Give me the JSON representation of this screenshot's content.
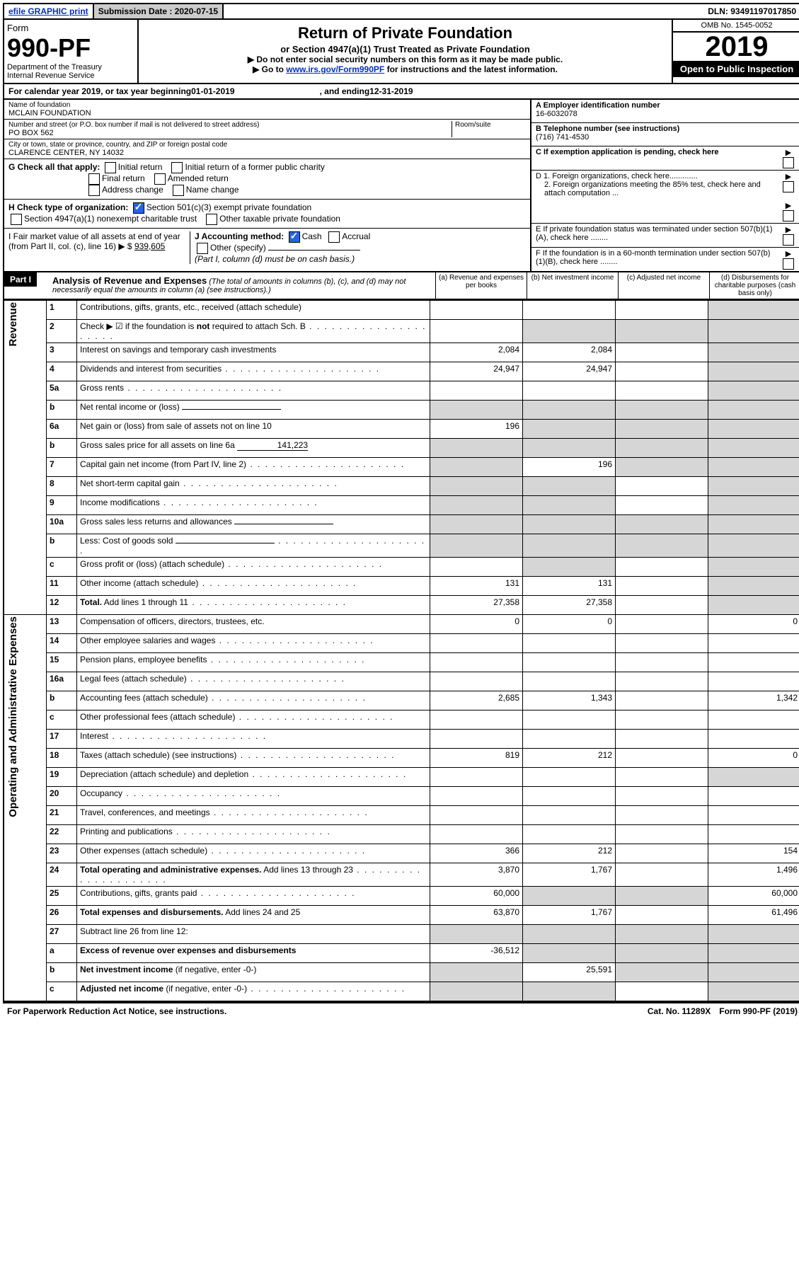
{
  "topbar": {
    "efile": "efile GRAPHIC print",
    "submission_label": "Submission Date : 2020-07-15",
    "dln": "DLN: 93491197017850"
  },
  "header": {
    "form_word": "Form",
    "form_number": "990-PF",
    "dept1": "Department of the Treasury",
    "dept2": "Internal Revenue Service",
    "title": "Return of Private Foundation",
    "subtitle": "or Section 4947(a)(1) Trust Treated as Private Foundation",
    "note1": "▶ Do not enter social security numbers on this form as it may be made public.",
    "note2_pre": "▶ Go to ",
    "note2_link": "www.irs.gov/Form990PF",
    "note2_post": " for instructions and the latest information.",
    "omb": "OMB No. 1545-0052",
    "year": "2019",
    "open_public": "Open to Public Inspection"
  },
  "calendar": {
    "prefix": "For calendar year 2019, or tax year beginning ",
    "begin": "01-01-2019",
    "mid": " , and ending ",
    "end": "12-31-2019"
  },
  "foundation": {
    "name_label": "Name of foundation",
    "name": "MCLAIN FOUNDATION",
    "addr_label": "Number and street (or P.O. box number if mail is not delivered to street address)",
    "room_label": "Room/suite",
    "addr": "PO BOX 562",
    "city_label": "City or town, state or province, country, and ZIP or foreign postal code",
    "city": "CLARENCE CENTER, NY  14032",
    "ein_label": "A Employer identification number",
    "ein": "16-6032078",
    "phone_label": "B Telephone number (see instructions)",
    "phone": "(716) 741-4530",
    "c_label": "C If exemption application is pending, check here",
    "d1": "D 1. Foreign organizations, check here.............",
    "d2": "2. Foreign organizations meeting the 85% test, check here and attach computation ...",
    "e_label": "E  If private foundation status was terminated under section 507(b)(1)(A), check here ........",
    "f_label": "F  If the foundation is in a 60-month termination under section 507(b)(1)(B), check here ........"
  },
  "checks": {
    "g_label": "G Check all that apply:",
    "initial": "Initial return",
    "initial_former": "Initial return of a former public charity",
    "final": "Final return",
    "amended": "Amended return",
    "address": "Address change",
    "name_change": "Name change",
    "h_label": "H Check type of organization:",
    "h1": "Section 501(c)(3) exempt private foundation",
    "h2": "Section 4947(a)(1) nonexempt charitable trust",
    "h3": "Other taxable private foundation",
    "i_label": "I Fair market value of all assets at end of year (from Part II, col. (c), line 16) ▶ $",
    "i_value": "939,605",
    "j_label": "J Accounting method:",
    "j_cash": "Cash",
    "j_accrual": "Accrual",
    "j_other": "Other (specify)",
    "j_note": "(Part I, column (d) must be on cash basis.)"
  },
  "part1": {
    "label": "Part I",
    "title": "Analysis of Revenue and Expenses",
    "note": " (The total of amounts in columns (b), (c), and (d) may not necessarily equal the amounts in column (a) (see instructions).)",
    "col_a": "(a)  Revenue and expenses per books",
    "col_b": "(b)  Net investment income",
    "col_c": "(c)  Adjusted net income",
    "col_d": "(d)  Disbursements for charitable purposes (cash basis only)"
  },
  "side_labels": {
    "revenue": "Revenue",
    "expenses": "Operating and Administrative Expenses"
  },
  "rows": [
    {
      "n": "1",
      "desc": "Contributions, gifts, grants, etc., received (attach schedule)",
      "a": "",
      "b": "",
      "c": "",
      "d": "",
      "dg": true
    },
    {
      "n": "2",
      "desc": "Check ▶ ☑ if the foundation is <b>not</b> required to attach Sch. B",
      "dots": true,
      "a": "",
      "b": "",
      "c": "",
      "d": "",
      "bg": true,
      "cg": true,
      "dg": true
    },
    {
      "n": "3",
      "desc": "Interest on savings and temporary cash investments",
      "a": "2,084",
      "b": "2,084",
      "c": "",
      "d": "",
      "dg": true
    },
    {
      "n": "4",
      "desc": "Dividends and interest from securities",
      "dots": true,
      "a": "24,947",
      "b": "24,947",
      "c": "",
      "d": "",
      "dg": true
    },
    {
      "n": "5a",
      "desc": "Gross rents",
      "dots": true,
      "a": "",
      "b": "",
      "c": "",
      "d": "",
      "dg": true
    },
    {
      "n": "b",
      "desc": "Net rental income or (loss)",
      "blank": true,
      "a": "",
      "b": "",
      "c": "",
      "d": "",
      "ag": true,
      "bg": true,
      "cg": true,
      "dg": true
    },
    {
      "n": "6a",
      "desc": "Net gain or (loss) from sale of assets not on line 10",
      "a": "196",
      "b": "",
      "c": "",
      "d": "",
      "bg": true,
      "cg": true,
      "dg": true
    },
    {
      "n": "b",
      "desc": "Gross sales price for all assets on line 6a",
      "blank_val": "141,223",
      "a": "",
      "b": "",
      "c": "",
      "d": "",
      "ag": true,
      "bg": true,
      "cg": true,
      "dg": true
    },
    {
      "n": "7",
      "desc": "Capital gain net income (from Part IV, line 2)",
      "dots": true,
      "a": "",
      "b": "196",
      "c": "",
      "d": "",
      "ag": true,
      "cg": true,
      "dg": true
    },
    {
      "n": "8",
      "desc": "Net short-term capital gain",
      "dots": true,
      "a": "",
      "b": "",
      "c": "",
      "d": "",
      "ag": true,
      "bg": true,
      "dg": true
    },
    {
      "n": "9",
      "desc": "Income modifications",
      "dots": true,
      "a": "",
      "b": "",
      "c": "",
      "d": "",
      "ag": true,
      "bg": true,
      "dg": true
    },
    {
      "n": "10a",
      "desc": "Gross sales less returns and allowances",
      "blank": true,
      "a": "",
      "b": "",
      "c": "",
      "d": "",
      "ag": true,
      "bg": true,
      "cg": true,
      "dg": true
    },
    {
      "n": "b",
      "desc": "Less: Cost of goods sold",
      "dots": true,
      "blank": true,
      "a": "",
      "b": "",
      "c": "",
      "d": "",
      "ag": true,
      "bg": true,
      "cg": true,
      "dg": true
    },
    {
      "n": "c",
      "desc": "Gross profit or (loss) (attach schedule)",
      "dots": true,
      "a": "",
      "b": "",
      "c": "",
      "d": "",
      "bg": true,
      "dg": true
    },
    {
      "n": "11",
      "desc": "Other income (attach schedule)",
      "dots": true,
      "a": "131",
      "b": "131",
      "c": "",
      "d": "",
      "dg": true
    },
    {
      "n": "12",
      "desc": "<b>Total.</b> Add lines 1 through 11",
      "dots": true,
      "a": "27,358",
      "b": "27,358",
      "c": "",
      "d": "",
      "dg": true
    }
  ],
  "exp_rows": [
    {
      "n": "13",
      "desc": "Compensation of officers, directors, trustees, etc.",
      "a": "0",
      "b": "0",
      "c": "",
      "d": "0"
    },
    {
      "n": "14",
      "desc": "Other employee salaries and wages",
      "dots": true,
      "a": "",
      "b": "",
      "c": "",
      "d": ""
    },
    {
      "n": "15",
      "desc": "Pension plans, employee benefits",
      "dots": true,
      "a": "",
      "b": "",
      "c": "",
      "d": ""
    },
    {
      "n": "16a",
      "desc": "Legal fees (attach schedule)",
      "dots": true,
      "a": "",
      "b": "",
      "c": "",
      "d": ""
    },
    {
      "n": "b",
      "desc": "Accounting fees (attach schedule)",
      "dots": true,
      "a": "2,685",
      "b": "1,343",
      "c": "",
      "d": "1,342"
    },
    {
      "n": "c",
      "desc": "Other professional fees (attach schedule)",
      "dots": true,
      "a": "",
      "b": "",
      "c": "",
      "d": ""
    },
    {
      "n": "17",
      "desc": "Interest",
      "dots": true,
      "a": "",
      "b": "",
      "c": "",
      "d": ""
    },
    {
      "n": "18",
      "desc": "Taxes (attach schedule) (see instructions)",
      "dots": true,
      "a": "819",
      "b": "212",
      "c": "",
      "d": "0"
    },
    {
      "n": "19",
      "desc": "Depreciation (attach schedule) and depletion",
      "dots": true,
      "a": "",
      "b": "",
      "c": "",
      "d": "",
      "dg": true
    },
    {
      "n": "20",
      "desc": "Occupancy",
      "dots": true,
      "a": "",
      "b": "",
      "c": "",
      "d": ""
    },
    {
      "n": "21",
      "desc": "Travel, conferences, and meetings",
      "dots": true,
      "a": "",
      "b": "",
      "c": "",
      "d": ""
    },
    {
      "n": "22",
      "desc": "Printing and publications",
      "dots": true,
      "a": "",
      "b": "",
      "c": "",
      "d": ""
    },
    {
      "n": "23",
      "desc": "Other expenses (attach schedule)",
      "dots": true,
      "a": "366",
      "b": "212",
      "c": "",
      "d": "154"
    },
    {
      "n": "24",
      "desc": "<b>Total operating and administrative expenses.</b> Add lines 13 through 23",
      "dots": true,
      "a": "3,870",
      "b": "1,767",
      "c": "",
      "d": "1,496"
    },
    {
      "n": "25",
      "desc": "Contributions, gifts, grants paid",
      "dots": true,
      "a": "60,000",
      "b": "",
      "c": "",
      "d": "60,000",
      "bg": true,
      "cg": true
    },
    {
      "n": "26",
      "desc": "<b>Total expenses and disbursements.</b> Add lines 24 and 25",
      "a": "63,870",
      "b": "1,767",
      "c": "",
      "d": "61,496"
    },
    {
      "n": "27",
      "desc": "Subtract line 26 from line 12:",
      "a": "",
      "b": "",
      "c": "",
      "d": "",
      "ag": true,
      "bg": true,
      "cg": true,
      "dg": true
    },
    {
      "n": "a",
      "desc": "<b>Excess of revenue over expenses and disbursements</b>",
      "a": "-36,512",
      "b": "",
      "c": "",
      "d": "",
      "bg": true,
      "cg": true,
      "dg": true
    },
    {
      "n": "b",
      "desc": "<b>Net investment income</b> (if negative, enter -0-)",
      "a": "",
      "b": "25,591",
      "c": "",
      "d": "",
      "ag": true,
      "cg": true,
      "dg": true
    },
    {
      "n": "c",
      "desc": "<b>Adjusted net income</b> (if negative, enter -0-)",
      "dots": true,
      "a": "",
      "b": "",
      "c": "",
      "d": "",
      "ag": true,
      "bg": true,
      "dg": true
    }
  ],
  "footer": {
    "left": "For Paperwork Reduction Act Notice, see instructions.",
    "cat": "Cat. No. 11289X",
    "right": "Form 990-PF (2019)"
  }
}
